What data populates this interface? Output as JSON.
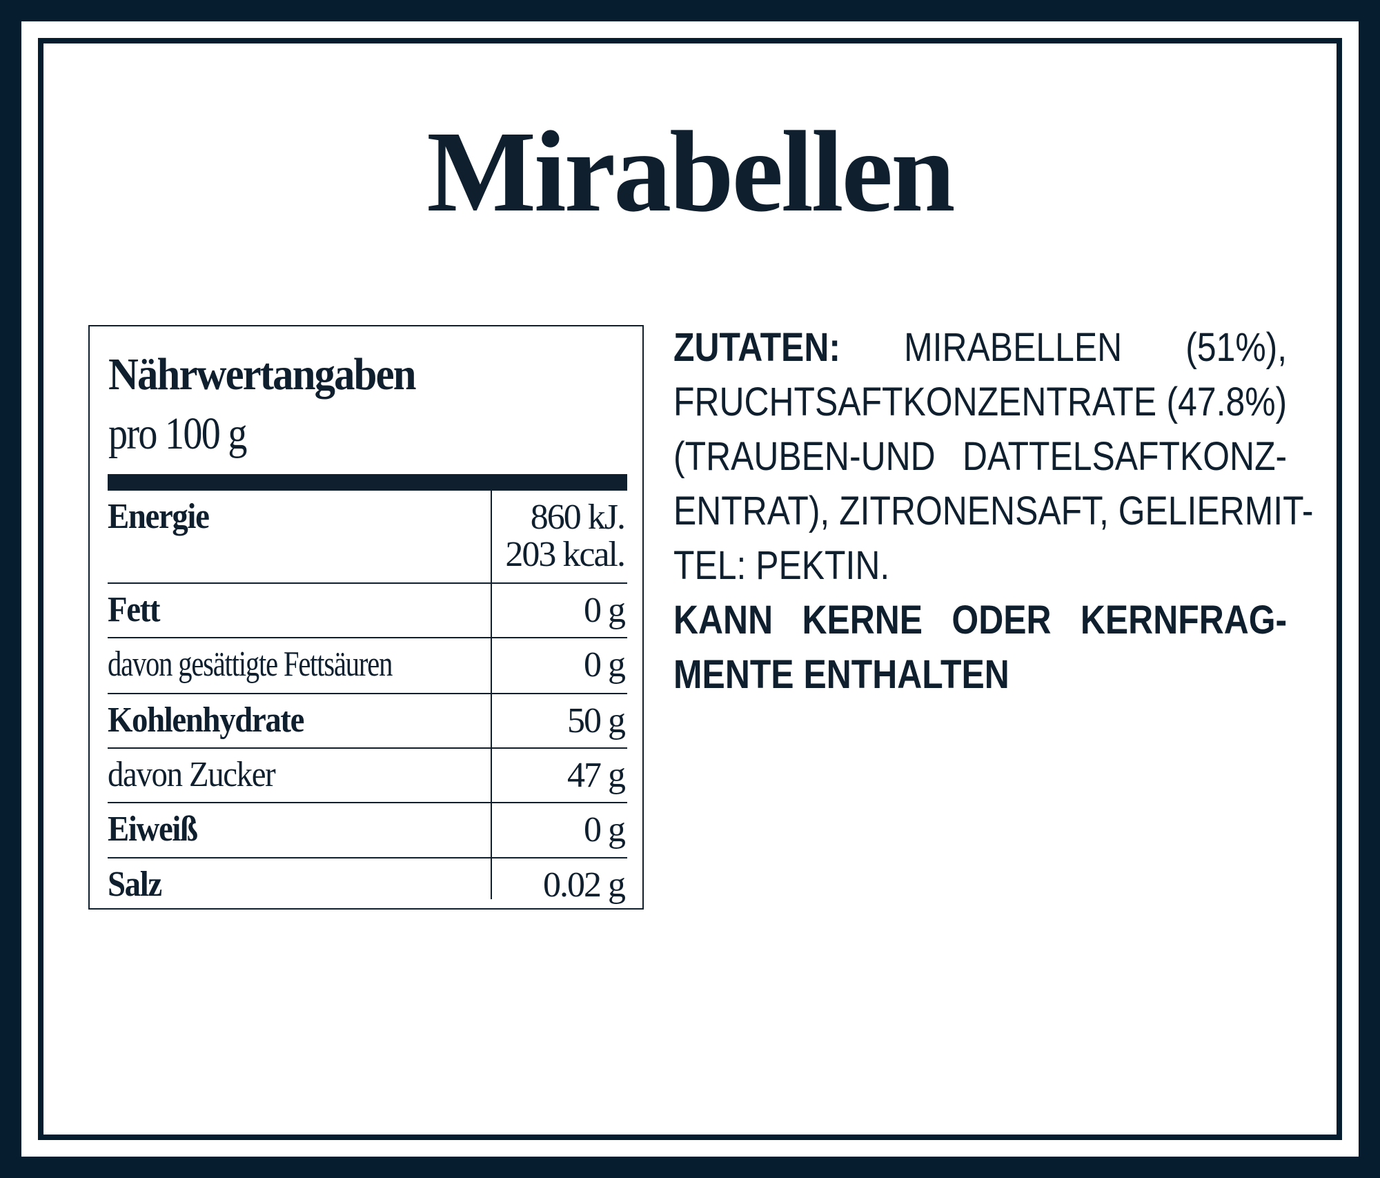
{
  "title": "Mirabellen",
  "nutrition": {
    "heading": "Nährwertangaben",
    "per": "pro 100 g",
    "rows": [
      {
        "label": "Energie",
        "value": "860 kJ.",
        "value2": "203 kcal."
      },
      {
        "label": "Fett",
        "value": "0 g"
      },
      {
        "label": "davon gesättigte Fettsäuren",
        "value": "0 g"
      },
      {
        "label": "Kohlenhydrate",
        "value": "50 g"
      },
      {
        "label": "davon Zucker",
        "value": "47 g"
      },
      {
        "label": "Eiweiß",
        "value": "0 g"
      },
      {
        "label": "Salz",
        "value": "0.02 g"
      }
    ]
  },
  "ingredients": {
    "label": "ZUTATEN:",
    "lines": [
      "MIRABELLEN (51%),",
      "FRUCHTSAFTKONZENTRATE (47.8%)",
      "(TRAUBEN-UND DATTELSAFTKONZ-",
      "ENTRAT), ZITRONENSAFT, GELIERMIT-",
      "TEL: PEKTIN."
    ],
    "warning_lines": [
      "KANN KERNE ODER KERNFRAG-",
      "MENTE ENTHALTEN"
    ]
  },
  "colors": {
    "navy": "#061d30",
    "text": "#0f1f2e",
    "background": "#ffffff"
  }
}
